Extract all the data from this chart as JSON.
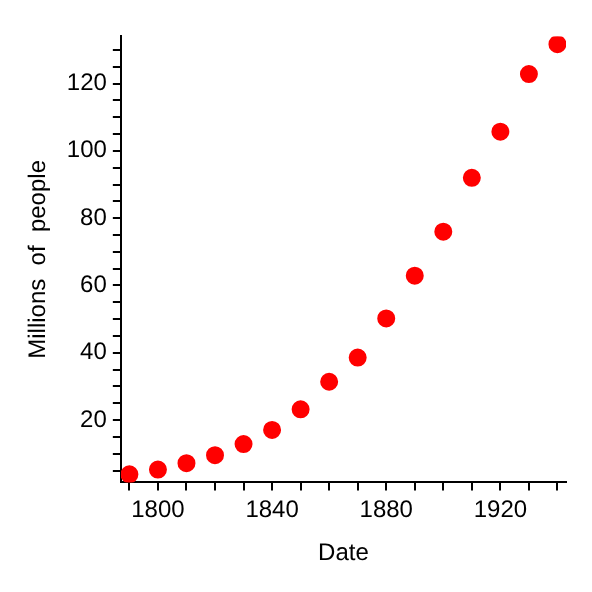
{
  "chart_data": {
    "type": "scatter",
    "xlabel": "Date",
    "ylabel": "Millions  of  people",
    "x": [
      1790,
      1800,
      1810,
      1820,
      1830,
      1840,
      1850,
      1860,
      1870,
      1880,
      1890,
      1900,
      1910,
      1920,
      1930,
      1940
    ],
    "series": [
      {
        "color": "#ff0000",
        "values": [
          3.9,
          5.3,
          7.2,
          9.6,
          12.9,
          17.1,
          23.2,
          31.4,
          38.6,
          50.2,
          62.9,
          76.0,
          92.0,
          105.7,
          122.8,
          131.7
        ]
      }
    ],
    "xlim": [
      1787,
      1943
    ],
    "ylim": [
      1.5,
      134
    ],
    "xticks": [
      {
        "value": 1790,
        "label": null
      },
      1800,
      {
        "value": 1810,
        "label": null
      },
      {
        "value": 1820,
        "label": null
      },
      {
        "value": 1830,
        "label": null
      },
      1840,
      {
        "value": 1850,
        "label": null
      },
      {
        "value": 1860,
        "label": null
      },
      {
        "value": 1870,
        "label": null
      },
      1880,
      {
        "value": 1890,
        "label": null
      },
      {
        "value": 1900,
        "label": null
      },
      {
        "value": 1910,
        "label": null
      },
      1920,
      {
        "value": 1930,
        "label": null
      },
      {
        "value": 1940,
        "label": null
      }
    ],
    "yticks": [
      {
        "value": 5,
        "label": null
      },
      {
        "value": 10,
        "label": null
      },
      {
        "value": 15,
        "label": null
      },
      20,
      {
        "value": 25,
        "label": null
      },
      {
        "value": 30,
        "label": null
      },
      {
        "value": 35,
        "label": null
      },
      40,
      {
        "value": 45,
        "label": null
      },
      {
        "value": 50,
        "label": null
      },
      {
        "value": 55,
        "label": null
      },
      60,
      {
        "value": 65,
        "label": null
      },
      {
        "value": 70,
        "label": null
      },
      {
        "value": 75,
        "label": null
      },
      80,
      {
        "value": 85,
        "label": null
      },
      {
        "value": 90,
        "label": null
      },
      {
        "value": 95,
        "label": null
      },
      100,
      {
        "value": 105,
        "label": null
      },
      {
        "value": 110,
        "label": null
      },
      {
        "value": 115,
        "label": null
      },
      120,
      {
        "value": 125,
        "label": null
      },
      {
        "value": 130,
        "label": null
      }
    ],
    "marker": "circle",
    "grid": false,
    "legend": false
  }
}
